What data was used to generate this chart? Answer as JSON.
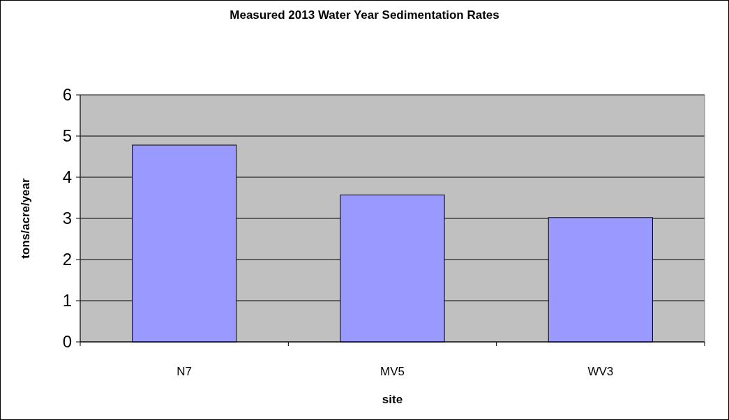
{
  "chart_data": {
    "type": "bar",
    "title": "Measured 2013 Water Year Sedimentation Rates",
    "xlabel": "site",
    "ylabel": "tons/acre/year",
    "categories": [
      "N7",
      "MV5",
      "WV3"
    ],
    "values": [
      4.78,
      3.57,
      3.02
    ],
    "color": "#9999ff",
    "ylim": [
      0,
      6
    ],
    "yticks": [
      0,
      1,
      2,
      3,
      4,
      5,
      6
    ],
    "grid": "y"
  }
}
